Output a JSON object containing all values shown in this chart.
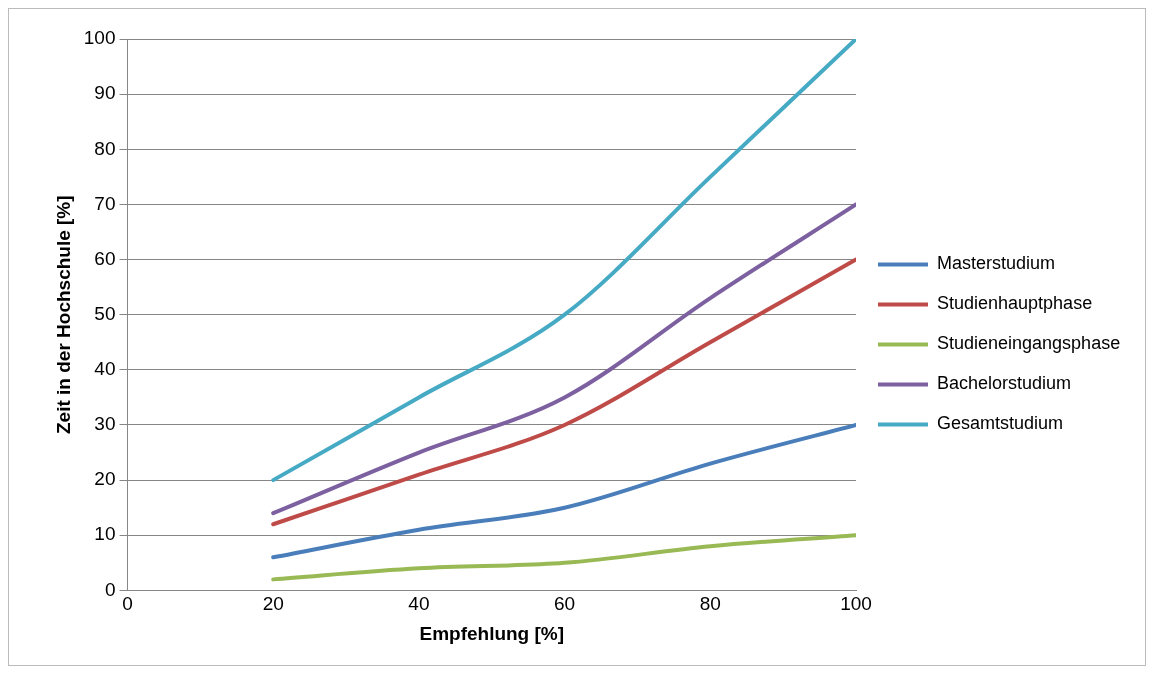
{
  "chart_data": {
    "type": "line",
    "xlabel": "Empfehlung [%]",
    "ylabel": "Zeit in der Hochschule [%]",
    "x": [
      20,
      40,
      60,
      80,
      100
    ],
    "series": [
      {
        "name": "Masterstudium",
        "color": "#4a7ebb",
        "values": [
          6,
          11,
          15,
          23,
          30
        ]
      },
      {
        "name": "Studienhauptphase",
        "color": "#be4b48",
        "values": [
          12,
          21,
          30,
          45,
          60
        ]
      },
      {
        "name": "Studieneingangsphase",
        "color": "#98b954",
        "values": [
          2,
          4,
          5,
          8,
          10
        ]
      },
      {
        "name": "Bachelorstudium",
        "color": "#7d60a0",
        "values": [
          14,
          25,
          35,
          53,
          70
        ]
      },
      {
        "name": "Gesamtstudium",
        "color": "#46aac5",
        "values": [
          20,
          35,
          50,
          75,
          100
        ]
      }
    ],
    "xlim": [
      0,
      100
    ],
    "xticks": [
      0,
      20,
      40,
      60,
      80,
      100
    ],
    "ylim": [
      0,
      100
    ],
    "yticks": [
      0,
      10,
      20,
      30,
      40,
      50,
      60,
      70,
      80,
      90,
      100
    ],
    "grid": "y",
    "legend": "right",
    "marker": "none",
    "line_style": "solid"
  }
}
